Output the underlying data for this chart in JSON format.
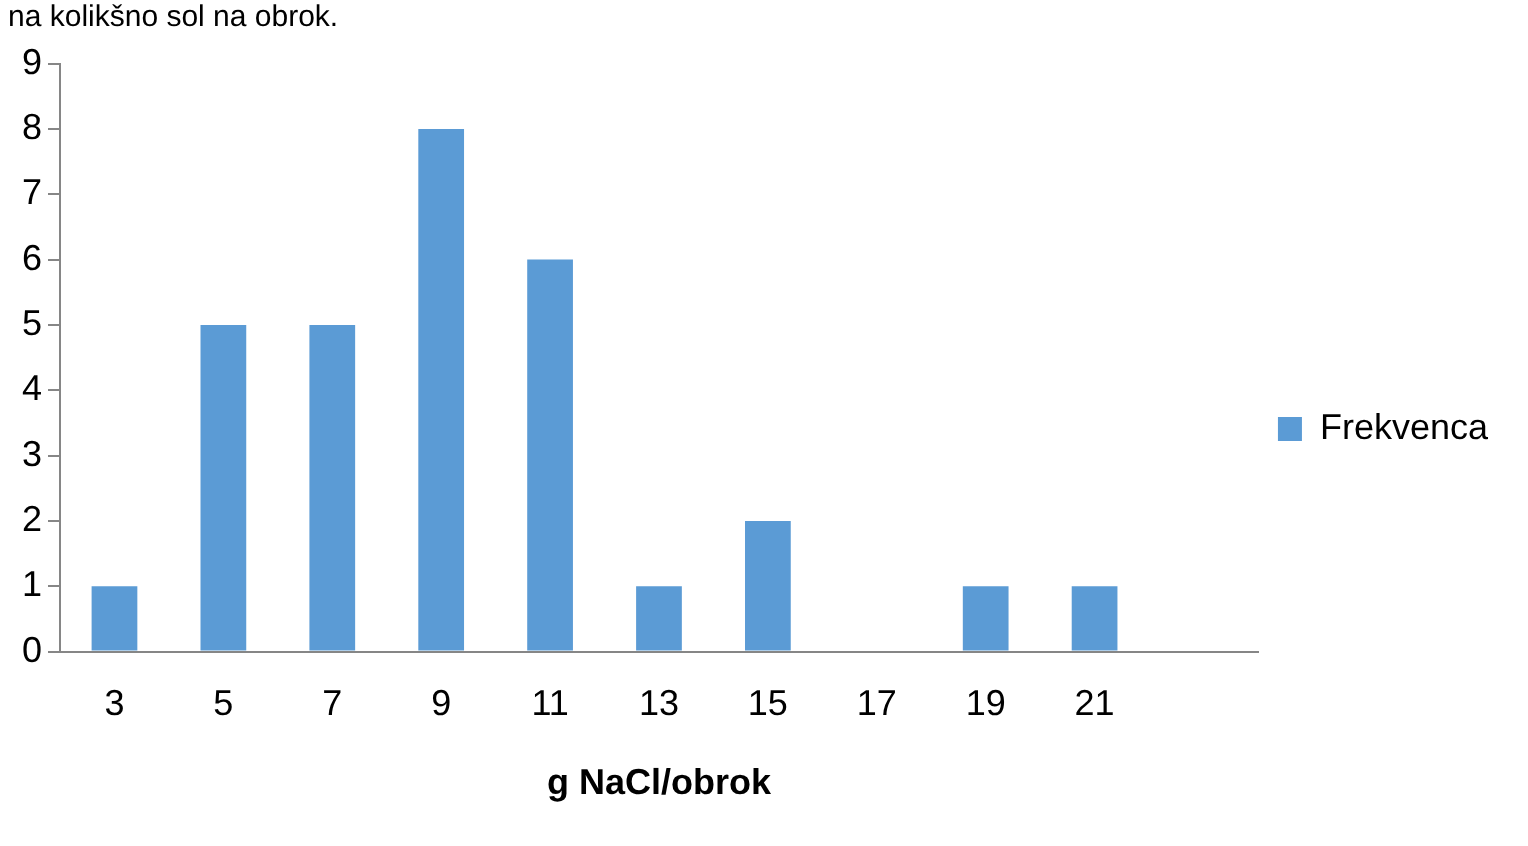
{
  "chart_data": {
    "type": "bar",
    "title": "na kolikšno sol na obrok.",
    "xlabel": "g NaCl/obrok",
    "categories": [
      "3",
      "5",
      "7",
      "9",
      "11",
      "13",
      "15",
      "17",
      "19",
      "21",
      null
    ],
    "series": [
      {
        "name": "Frekvenca",
        "color": "#5b9bd5",
        "values": [
          1,
          5,
          5,
          8,
          6,
          1,
          2,
          0,
          1,
          1,
          null
        ]
      }
    ],
    "ylim": [
      0,
      9
    ],
    "yticks": [
      0,
      1,
      2,
      3,
      4,
      5,
      6,
      7,
      8,
      9
    ],
    "grid": false,
    "legend": "right"
  }
}
